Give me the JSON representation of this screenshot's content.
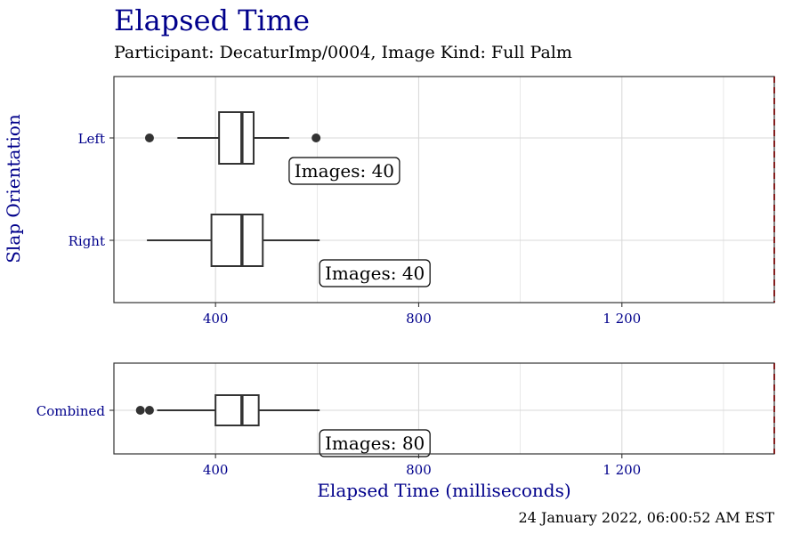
{
  "title": "Elapsed Time",
  "subtitle": "Participant: DecaturImp/0004, Image Kind: Full Palm",
  "footer": "24 January 2022, 06:00:52 AM EST",
  "colors": {
    "axis_text": "#00008B",
    "threshold": "#FF0000",
    "box": "#333333",
    "grid": "#D9D9D9"
  },
  "chart_data": [
    {
      "type": "box",
      "panel": "slap",
      "ylabel": "Slap Orientation",
      "xlim": [
        200,
        1500
      ],
      "xticks": [
        400,
        800,
        1200
      ],
      "xtick_labels": [
        "400",
        "800",
        "1 200"
      ],
      "threshold": 1500,
      "grid": true,
      "groups": [
        {
          "label": "Left",
          "whisker_low": 325,
          "q1": 407,
          "median": 452,
          "q3": 475,
          "whisker_high": 545,
          "outliers": [
            270,
            598
          ],
          "annotation": "Images: 40"
        },
        {
          "label": "Right",
          "whisker_low": 265,
          "q1": 392,
          "median": 452,
          "q3": 493,
          "whisker_high": 605,
          "outliers": [],
          "annotation": "Images: 40"
        }
      ]
    },
    {
      "type": "box",
      "panel": "combined",
      "xlabel": "Elapsed Time (milliseconds)",
      "xlim": [
        200,
        1500
      ],
      "xticks": [
        400,
        800,
        1200
      ],
      "xtick_labels": [
        "400",
        "800",
        "1 200"
      ],
      "threshold": 1500,
      "grid": true,
      "groups": [
        {
          "label": "Combined",
          "whisker_low": 285,
          "q1": 400,
          "median": 452,
          "q3": 485,
          "whisker_high": 605,
          "outliers": [
            252,
            270
          ],
          "annotation": "Images: 80"
        }
      ]
    }
  ]
}
